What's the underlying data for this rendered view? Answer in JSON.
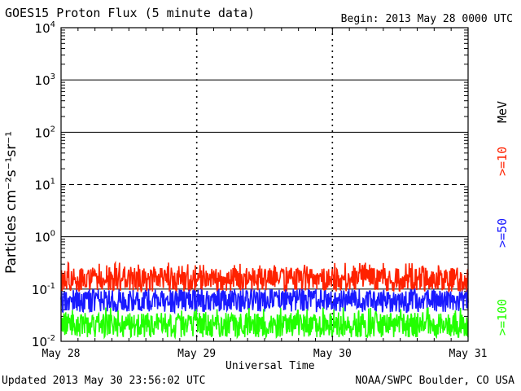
{
  "header": {
    "title": "GOES15 Proton Flux (5 minute data)",
    "begin": "Begin: 2013 May 28 0000 UTC"
  },
  "footer": {
    "updated": "Updated 2013 May 30 23:56:02 UTC",
    "credit": "NOAA/SWPC Boulder, CO USA"
  },
  "chart_data": {
    "type": "line",
    "title": "GOES15 Proton Flux (5 minute data)",
    "xlabel": "Universal Time",
    "ylabel": "Particles cm⁻²s⁻¹sr⁻¹",
    "y_scale": "log",
    "ylim": [
      0.01,
      10000
    ],
    "xlim": [
      "2013-05-28",
      "2013-05-31"
    ],
    "x_tick_labels": [
      "May 28",
      "May 29",
      "May 30",
      "May 31"
    ],
    "y_tick_labels": [
      {
        "base": "10",
        "exp": "4"
      },
      {
        "base": "10",
        "exp": "3"
      },
      {
        "base": "10",
        "exp": "2"
      },
      {
        "base": "10",
        "exp": "1"
      },
      {
        "base": "10",
        "exp": "0"
      },
      {
        "base": "10",
        "exp": "-1"
      },
      {
        "base": "10",
        "exp": "-2"
      }
    ],
    "energy_unit": "MeV",
    "series": [
      {
        "name": ">=10",
        "color": "#ff2200",
        "level": 0.15,
        "range": [
          0.09,
          0.32
        ]
      },
      {
        "name": ">=50",
        "color": "#1a1aff",
        "level": 0.06,
        "range": [
          0.03,
          0.1
        ]
      },
      {
        "name": ">=100",
        "color": "#22ff00",
        "level": 0.02,
        "range": [
          0.012,
          0.045
        ]
      }
    ],
    "grid": true
  }
}
